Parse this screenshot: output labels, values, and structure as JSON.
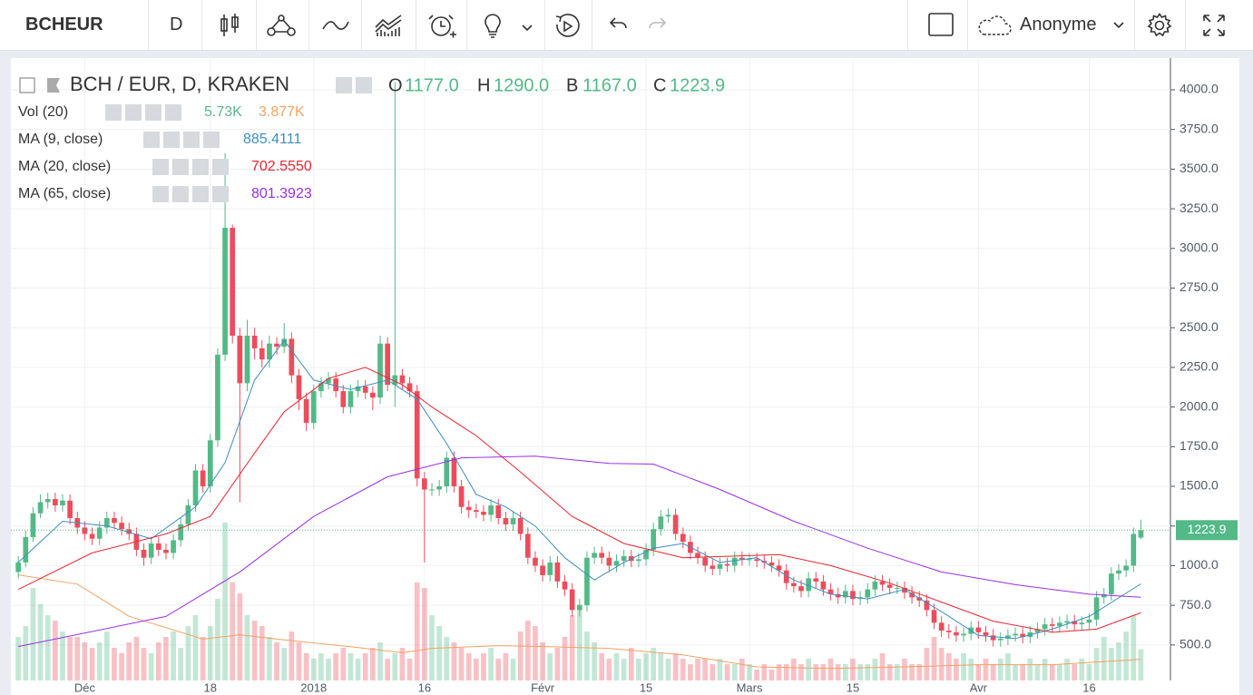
{
  "toolbar": {
    "symbol": "BCHEUR",
    "interval": "D",
    "user": "Anonyme"
  },
  "chart_data": {
    "type": "candlestick",
    "title": "BCH / EUR, D, KRAKEN",
    "ohlc_keys": [
      "O",
      "H",
      "B",
      "C"
    ],
    "last_labels": [
      "1177.0",
      "1290.0",
      "1167.0",
      "1223.9"
    ],
    "up_color": "#53b987",
    "down_color": "#eb4d5c",
    "open": [
      960,
      1020,
      1180,
      1330,
      1400,
      1420,
      1380,
      1410,
      1300,
      1240,
      1200,
      1170,
      1240,
      1300,
      1270,
      1230,
      1200,
      1100,
      1050,
      1140,
      1100,
      1080,
      1160,
      1260,
      1380,
      1600,
      1500,
      1790,
      2330,
      3130,
      2450,
      2150,
      2450,
      2370,
      2300,
      2400,
      2380,
      2430,
      2200,
      2050,
      1900,
      2100,
      2150,
      2180,
      2100,
      2000,
      2100,
      2130,
      2090,
      2060,
      2400,
      2140,
      2200,
      2150,
      2100,
      1550,
      1480,
      1480,
      1500,
      1680,
      1500,
      1370,
      1350,
      1340,
      1320,
      1380,
      1300,
      1260,
      1300,
      1200,
      1050,
      1000,
      940,
      1020,
      900,
      850,
      720,
      750,
      1050,
      1080,
      1050,
      1000,
      1030,
      1060,
      1030,
      1040,
      1100,
      1230,
      1310,
      1320,
      1200,
      1150,
      1080,
      1050,
      1000,
      980,
      1010,
      1000,
      1050,
      1040,
      1040,
      1030,
      1020,
      1000,
      970,
      890,
      870,
      840,
      920,
      900,
      850,
      820,
      800,
      840,
      790,
      800,
      850,
      900,
      880,
      860,
      860,
      830,
      800,
      780,
      720,
      640,
      590,
      580,
      560,
      570,
      610,
      580,
      560,
      530,
      540,
      560,
      570,
      550,
      580,
      600,
      630,
      620,
      640,
      650,
      630,
      640,
      660,
      800,
      820,
      950,
      970,
      1000,
      1177
    ],
    "high": [
      1060,
      1220,
      1370,
      1450,
      1460,
      1460,
      1450,
      1450,
      1340,
      1280,
      1240,
      1280,
      1340,
      1340,
      1310,
      1270,
      1240,
      1140,
      1180,
      1180,
      1140,
      1200,
      1300,
      1420,
      1640,
      1640,
      1830,
      2370,
      3600,
      3150,
      2500,
      2550,
      2500,
      2420,
      2450,
      2440,
      2530,
      2470,
      2240,
      2090,
      2140,
      2190,
      2220,
      2220,
      2140,
      2140,
      2170,
      2170,
      2130,
      2450,
      2440,
      4050,
      2240,
      2190,
      2140,
      1590,
      1520,
      1540,
      1720,
      1720,
      1540,
      1410,
      1390,
      1380,
      1420,
      1420,
      1340,
      1340,
      1340,
      1240,
      1090,
      1040,
      1060,
      1060,
      940,
      890,
      790,
      1090,
      1120,
      1120,
      1090,
      1070,
      1100,
      1100,
      1080,
      1140,
      1270,
      1350,
      1360,
      1360,
      1240,
      1190,
      1120,
      1090,
      1040,
      1050,
      1050,
      1090,
      1090,
      1080,
      1080,
      1070,
      1060,
      1040,
      1010,
      930,
      910,
      960,
      960,
      940,
      890,
      860,
      880,
      880,
      840,
      890,
      940,
      940,
      920,
      900,
      900,
      870,
      840,
      820,
      760,
      680,
      630,
      620,
      610,
      650,
      650,
      620,
      600,
      580,
      600,
      610,
      610,
      620,
      640,
      670,
      670,
      680,
      690,
      690,
      680,
      700,
      840,
      860,
      990,
      1010,
      1040,
      1240,
      1290
    ],
    "low": [
      920,
      990,
      1150,
      1300,
      1360,
      1340,
      1340,
      1260,
      1200,
      1160,
      1130,
      1130,
      1200,
      1230,
      1190,
      1160,
      1060,
      1000,
      1010,
      1060,
      1040,
      1040,
      1120,
      1220,
      1340,
      1460,
      1460,
      1750,
      2290,
      2400,
      1400,
      2100,
      2300,
      2250,
      2250,
      2330,
      2340,
      2150,
      1980,
      1850,
      1860,
      2060,
      2110,
      2060,
      1960,
      1960,
      2060,
      2050,
      1980,
      2020,
      2100,
      2000,
      2110,
      2060,
      1500,
      1020,
      1440,
      1440,
      1460,
      1460,
      1330,
      1300,
      1300,
      1280,
      1280,
      1260,
      1220,
      1220,
      1160,
      1010,
      960,
      900,
      900,
      860,
      810,
      680,
      680,
      710,
      1010,
      1010,
      960,
      960,
      990,
      990,
      990,
      1000,
      1060,
      1190,
      1270,
      1160,
      1110,
      1040,
      1010,
      960,
      940,
      940,
      960,
      960,
      1000,
      1000,
      990,
      980,
      960,
      930,
      850,
      830,
      800,
      800,
      860,
      810,
      780,
      760,
      760,
      750,
      750,
      760,
      810,
      840,
      820,
      820,
      790,
      760,
      740,
      680,
      600,
      550,
      540,
      520,
      520,
      530,
      540,
      520,
      490,
      490,
      500,
      520,
      510,
      510,
      540,
      560,
      580,
      580,
      600,
      590,
      590,
      600,
      620,
      760,
      780,
      910,
      930,
      960,
      1167
    ],
    "close": [
      1020,
      1180,
      1330,
      1400,
      1420,
      1380,
      1410,
      1300,
      1240,
      1200,
      1170,
      1240,
      1300,
      1270,
      1230,
      1200,
      1100,
      1050,
      1140,
      1100,
      1080,
      1160,
      1260,
      1380,
      1600,
      1500,
      1790,
      2330,
      3130,
      2450,
      2150,
      2450,
      2370,
      2300,
      2400,
      2380,
      2430,
      2200,
      2050,
      1900,
      2100,
      2150,
      2180,
      2100,
      2000,
      2100,
      2130,
      2090,
      2060,
      2400,
      2140,
      2200,
      2150,
      2100,
      1550,
      1480,
      1480,
      1500,
      1680,
      1500,
      1370,
      1350,
      1340,
      1320,
      1380,
      1300,
      1260,
      1300,
      1200,
      1050,
      1000,
      940,
      1020,
      900,
      850,
      720,
      750,
      1050,
      1080,
      1050,
      1000,
      1030,
      1060,
      1030,
      1040,
      1100,
      1230,
      1310,
      1320,
      1200,
      1150,
      1080,
      1050,
      1000,
      980,
      1010,
      1000,
      1050,
      1040,
      1040,
      1030,
      1020,
      1000,
      970,
      890,
      870,
      840,
      920,
      900,
      850,
      820,
      800,
      840,
      790,
      800,
      850,
      900,
      880,
      860,
      860,
      830,
      800,
      780,
      720,
      640,
      590,
      580,
      560,
      570,
      610,
      580,
      560,
      530,
      540,
      560,
      570,
      550,
      580,
      600,
      630,
      620,
      640,
      650,
      630,
      640,
      660,
      800,
      820,
      950,
      970,
      1000,
      1200,
      1223.9
    ],
    "volume": {
      "name": "Vol (20)",
      "value_label": "5.73K",
      "ma_label": "3.877K",
      "value_color": "#5ab98f",
      "ma_color": "#f5a263",
      "vlim": [
        0,
        30
      ],
      "values": [
        8,
        10,
        17,
        14,
        12,
        11,
        9,
        8,
        8,
        7,
        6,
        7,
        9,
        6,
        5,
        7,
        8,
        6,
        5,
        7,
        8,
        9,
        6,
        10,
        12,
        8,
        10,
        15,
        29,
        18,
        16,
        12,
        11,
        10,
        8,
        7,
        6,
        9,
        7,
        5,
        4,
        5,
        4,
        5,
        6,
        5,
        4,
        5,
        6,
        7,
        4,
        5,
        6,
        4,
        18,
        17,
        12,
        10,
        8,
        7,
        6,
        5,
        4,
        5,
        6,
        4,
        5,
        4,
        9,
        11,
        10,
        7,
        5,
        6,
        8,
        12,
        14,
        9,
        7,
        5,
        4,
        5,
        4,
        6,
        4,
        5,
        6,
        5,
        4,
        5,
        4,
        3,
        4,
        4,
        3,
        4,
        3,
        3,
        4,
        3,
        2,
        3,
        2,
        3,
        3,
        4,
        3,
        4,
        3,
        3,
        4,
        3,
        3,
        4,
        3,
        3,
        4,
        5,
        3,
        3,
        4,
        3,
        3,
        6,
        8,
        6,
        5,
        4,
        5,
        4,
        3,
        4,
        3,
        4,
        5,
        3,
        3,
        4,
        3,
        4,
        3,
        3,
        4,
        3,
        4,
        3,
        6,
        8,
        6,
        7,
        9,
        12,
        5.73
      ],
      "ma_x": [
        0,
        8,
        15,
        25,
        30,
        35,
        45,
        52,
        56,
        65,
        72,
        80,
        90,
        100,
        110,
        120,
        130,
        140,
        152
      ],
      "ma_values": [
        19.4,
        17.7,
        11.8,
        7.6,
        8.4,
        7.6,
        6.2,
        5.1,
        5.9,
        6.4,
        6.2,
        5.9,
        4.7,
        2.5,
        2.2,
        2.5,
        2.9,
        2.9,
        3.877
      ]
    },
    "series": [
      {
        "name": "MA (9, close)",
        "color": "#3c8fbf",
        "value_label": "885.4111",
        "x": [
          0,
          6,
          12,
          18,
          24,
          28,
          32,
          36,
          40,
          45,
          50,
          54,
          58,
          62,
          66,
          70,
          74,
          78,
          82,
          86,
          90,
          95,
          100,
          105,
          110,
          115,
          120,
          125,
          130,
          135,
          140,
          145,
          152
        ],
        "values": [
          1020,
          1280,
          1250,
          1170,
          1370,
          1650,
          2170,
          2420,
          2170,
          2110,
          2170,
          2050,
          1770,
          1450,
          1370,
          1250,
          1050,
          910,
          1020,
          1110,
          1140,
          1020,
          1050,
          910,
          820,
          790,
          850,
          710,
          560,
          540,
          600,
          680,
          885.4111
        ]
      },
      {
        "name": "MA (20, close)",
        "color": "#e8262e",
        "value_label": "702.5550",
        "x": [
          0,
          10,
          20,
          26,
          32,
          36,
          42,
          47,
          52,
          56,
          62,
          68,
          75,
          82,
          90,
          97,
          103,
          110,
          118,
          125,
          132,
          140,
          146,
          152
        ],
        "values": [
          850,
          1080,
          1200,
          1310,
          1710,
          1970,
          2180,
          2250,
          2140,
          2000,
          1820,
          1590,
          1310,
          1140,
          1050,
          1060,
          1070,
          1000,
          890,
          770,
          650,
          580,
          600,
          702.555
        ]
      },
      {
        "name": "MA (65, close)",
        "color": "#9a2ee8",
        "value_label": "801.3923",
        "x": [
          0,
          20,
          30,
          40,
          50,
          60,
          70,
          80,
          86,
          95,
          105,
          115,
          125,
          135,
          145,
          152
        ],
        "values": [
          490,
          680,
          960,
          1310,
          1560,
          1680,
          1690,
          1645,
          1640,
          1480,
          1280,
          1110,
          960,
          880,
          820,
          801.3923
        ]
      }
    ],
    "xlim": [
      -1,
      156
    ],
    "xticks": [
      {
        "value": 9,
        "label": "Déc"
      },
      {
        "value": 26,
        "label": "18"
      },
      {
        "value": 40,
        "label": "2018"
      },
      {
        "value": 55,
        "label": "16"
      },
      {
        "value": 71,
        "label": "Févr"
      },
      {
        "value": 85,
        "label": "15"
      },
      {
        "value": 99,
        "label": "Mars"
      },
      {
        "value": 113,
        "label": "15"
      },
      {
        "value": 130,
        "label": "Avr"
      },
      {
        "value": 145,
        "label": "16"
      }
    ],
    "ylim": [
      276,
      4200
    ],
    "yticks": [
      {
        "value": 500,
        "label": "500.0"
      },
      {
        "value": 750,
        "label": "750.0"
      },
      {
        "value": 1000,
        "label": "1000.0"
      },
      {
        "value": 1250,
        "label": "1250.0"
      },
      {
        "value": 1500,
        "label": "1500.0"
      },
      {
        "value": 1750,
        "label": "1750.0"
      },
      {
        "value": 2000,
        "label": "2000.0"
      },
      {
        "value": 2250,
        "label": "2250.0"
      },
      {
        "value": 2500,
        "label": "2500.0"
      },
      {
        "value": 2750,
        "label": "2750.0"
      },
      {
        "value": 3000,
        "label": "3000.0"
      },
      {
        "value": 3250,
        "label": "3250.0"
      },
      {
        "value": 3500,
        "label": "3500.0"
      },
      {
        "value": 3750,
        "label": "3750.0"
      },
      {
        "value": 4000,
        "label": "4000.0"
      }
    ],
    "grid": true
  }
}
